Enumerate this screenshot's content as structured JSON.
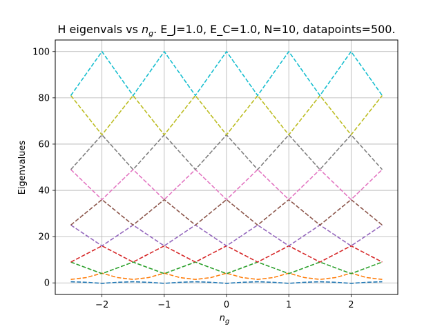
{
  "chart_data": {
    "type": "line",
    "title_prefix": "H eigenvals vs ",
    "title_math_base": "n",
    "title_math_sub": "g",
    "title_suffix": ". E_J=1.0, E_C=1.0, N=10, datapoints=500.",
    "xlabel_base": "n",
    "xlabel_sub": "g",
    "ylabel": "Eigenvalues",
    "xlim": [
      -2.75,
      2.75
    ],
    "ylim": [
      -5,
      105
    ],
    "xticks": [
      -2,
      -1,
      0,
      1,
      2
    ],
    "xtick_labels": [
      "−2",
      "−1",
      "0",
      "1",
      "2"
    ],
    "yticks": [
      0,
      20,
      40,
      60,
      80,
      100
    ],
    "ytick_labels": [
      "0",
      "20",
      "40",
      "60",
      "80",
      "100"
    ],
    "grid": true,
    "line_style": "dashed",
    "x_range": [
      -2.5,
      2.5
    ],
    "series": [
      {
        "color": "#1f77b4",
        "x": [
          -2.5,
          -2.25,
          -2,
          -1.75,
          -1.5,
          -1.25,
          -1,
          -0.75,
          -0.5,
          -0.25,
          0,
          0.25,
          0.5,
          0.75,
          1,
          1.25,
          1.5,
          1.75,
          2,
          2.25,
          2.5
        ],
        "y": [
          0.5,
          0.25,
          -0.2,
          0.25,
          0.5,
          0.25,
          -0.2,
          0.25,
          0.5,
          0.25,
          -0.2,
          0.25,
          0.5,
          0.25,
          -0.2,
          0.25,
          0.5,
          0.25,
          -0.2,
          0.25,
          0.5
        ]
      },
      {
        "color": "#ff7f0e",
        "x": [
          -2.5,
          -2.25,
          -2,
          -1.75,
          -1.5,
          -1.25,
          -1,
          -0.75,
          -0.5,
          -0.25,
          0,
          0.25,
          0.5,
          0.75,
          1,
          1.25,
          1.5,
          1.75,
          2,
          2.25,
          2.5
        ],
        "y": [
          1.5,
          2.3,
          4.2,
          2.3,
          1.5,
          2.3,
          4.2,
          2.3,
          1.5,
          2.3,
          4.2,
          2.3,
          1.5,
          2.3,
          4.2,
          2.3,
          1.5,
          2.3,
          4.2,
          2.3,
          1.5
        ]
      },
      {
        "color": "#2ca02c",
        "x": [
          -2.5,
          -2,
          -1.5,
          -1,
          -0.5,
          0,
          0.5,
          1,
          1.5,
          2,
          2.5
        ],
        "y": [
          9,
          4,
          9,
          4,
          9,
          4,
          9,
          4,
          9,
          4,
          9
        ]
      },
      {
        "color": "#d62728",
        "x": [
          -2.5,
          -2,
          -1.5,
          -1,
          -0.5,
          0,
          0.5,
          1,
          1.5,
          2,
          2.5
        ],
        "y": [
          9,
          16,
          9,
          16,
          9,
          16,
          9,
          16,
          9,
          16,
          9
        ]
      },
      {
        "color": "#9467bd",
        "x": [
          -2.5,
          -2,
          -1.5,
          -1,
          -0.5,
          0,
          0.5,
          1,
          1.5,
          2,
          2.5
        ],
        "y": [
          25,
          16,
          25,
          16,
          25,
          16,
          25,
          16,
          25,
          16,
          25
        ]
      },
      {
        "color": "#8c564b",
        "x": [
          -2.5,
          -2,
          -1.5,
          -1,
          -0.5,
          0,
          0.5,
          1,
          1.5,
          2,
          2.5
        ],
        "y": [
          25,
          36,
          25,
          36,
          25,
          36,
          25,
          36,
          25,
          36,
          25
        ]
      },
      {
        "color": "#e377c2",
        "x": [
          -2.5,
          -2,
          -1.5,
          -1,
          -0.5,
          0,
          0.5,
          1,
          1.5,
          2,
          2.5
        ],
        "y": [
          49,
          36,
          49,
          36,
          49,
          36,
          49,
          36,
          49,
          36,
          49
        ]
      },
      {
        "color": "#7f7f7f",
        "x": [
          -2.5,
          -2,
          -1.5,
          -1,
          -0.5,
          0,
          0.5,
          1,
          1.5,
          2,
          2.5
        ],
        "y": [
          49,
          64,
          49,
          64,
          49,
          64,
          49,
          64,
          49,
          64,
          49
        ]
      },
      {
        "color": "#bcbd22",
        "x": [
          -2.5,
          -2,
          -1.5,
          -1,
          -0.5,
          0,
          0.5,
          1,
          1.5,
          2,
          2.5
        ],
        "y": [
          81,
          64,
          81,
          64,
          81,
          64,
          81,
          64,
          81,
          64,
          81
        ]
      },
      {
        "color": "#17becf",
        "x": [
          -2.5,
          -2,
          -1.5,
          -1,
          -0.5,
          0,
          0.5,
          1,
          1.5,
          2,
          2.5
        ],
        "y": [
          81,
          100,
          81,
          100,
          81,
          100,
          81,
          100,
          81,
          100,
          81
        ]
      }
    ]
  }
}
